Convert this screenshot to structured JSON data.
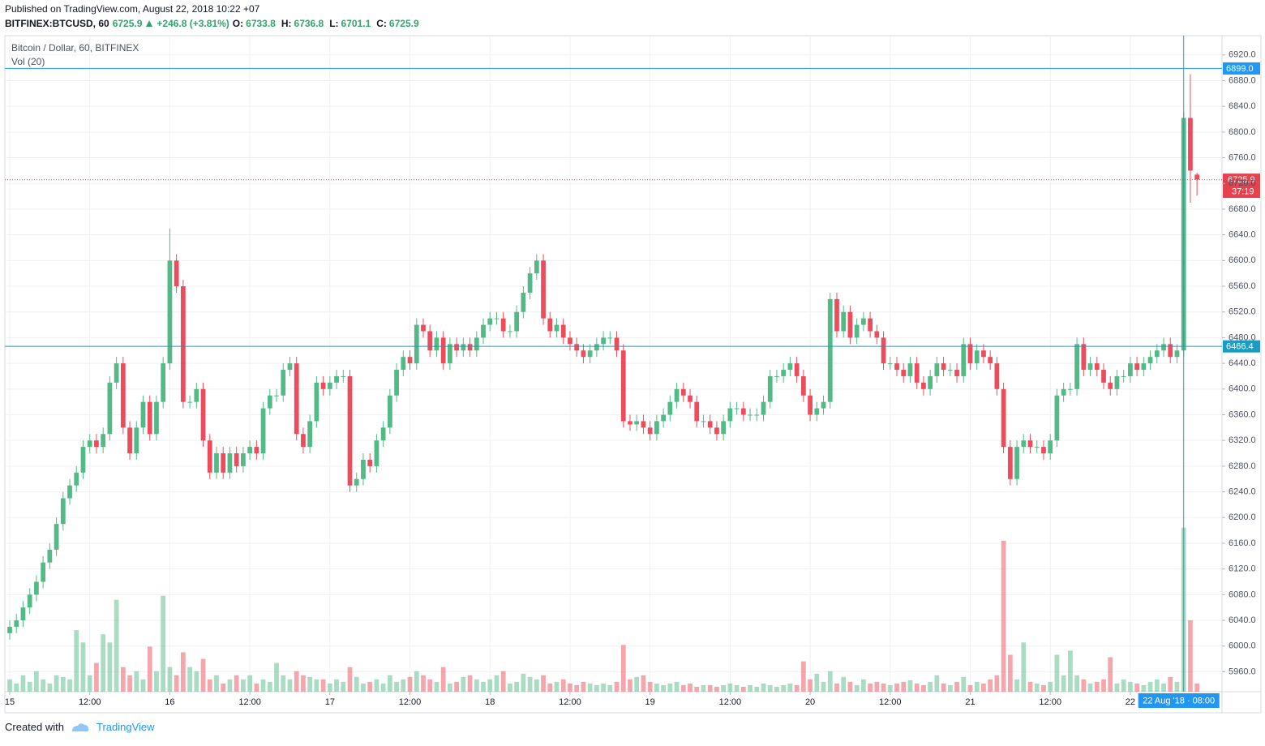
{
  "header": {
    "published": "Published on TradingView.com, August 22, 2018 10:22 +07",
    "symbol": "BITFINEX:BTCUSD, 60",
    "last": "6725.9",
    "change": "+246.8 (+3.81%)",
    "ohlc": [
      {
        "key": "O:",
        "value": "6733.8"
      },
      {
        "key": "H:",
        "value": "6736.8"
      },
      {
        "key": "L:",
        "value": "6701.1"
      },
      {
        "key": "C:",
        "value": "6725.9"
      }
    ]
  },
  "footer": {
    "created": "Created with",
    "brand": "TradingView"
  },
  "chart_data": {
    "type": "candlestick",
    "title": "Bitcoin / Dollar, 60, BITFINEX",
    "volume_title": "Vol (20)",
    "up_color": "#53b987",
    "down_color": "#eb4d5c",
    "grid": true,
    "xlim": [
      -0.73,
      181.75
    ],
    "xticks": [
      {
        "value": 0,
        "label": "15"
      },
      {
        "value": 12,
        "label": "12:00"
      },
      {
        "value": 24,
        "label": "16"
      },
      {
        "value": 36,
        "label": "12:00"
      },
      {
        "value": 48,
        "label": "17"
      },
      {
        "value": 60,
        "label": "12:00"
      },
      {
        "value": 72,
        "label": "18"
      },
      {
        "value": 84,
        "label": "12:00"
      },
      {
        "value": 96,
        "label": "19"
      },
      {
        "value": 108,
        "label": "12:00"
      },
      {
        "value": 120,
        "label": "20"
      },
      {
        "value": 132,
        "label": "12:00"
      },
      {
        "value": 144,
        "label": "21"
      },
      {
        "value": 156,
        "label": "12:00"
      },
      {
        "value": 168,
        "label": "22"
      }
    ],
    "ylim": [
      5929,
      6950
    ],
    "yticks": [
      {
        "value": 5960,
        "label": "5960.0"
      },
      {
        "value": 6000,
        "label": "6000.0"
      },
      {
        "value": 6040,
        "label": "6040.0"
      },
      {
        "value": 6080,
        "label": "6080.0"
      },
      {
        "value": 6120,
        "label": "6120.0"
      },
      {
        "value": 6160,
        "label": "6160.0"
      },
      {
        "value": 6200,
        "label": "6200.0"
      },
      {
        "value": 6240,
        "label": "6240.0"
      },
      {
        "value": 6280,
        "label": "6280.0"
      },
      {
        "value": 6320,
        "label": "6320.0"
      },
      {
        "value": 6360,
        "label": "6360.0"
      },
      {
        "value": 6400,
        "label": "6400.0"
      },
      {
        "value": 6440,
        "label": "6440.0"
      },
      {
        "value": 6480,
        "label": "6480.0"
      },
      {
        "value": 6520,
        "label": "6520.0"
      },
      {
        "value": 6560,
        "label": "6560.0"
      },
      {
        "value": 6600,
        "label": "6600.0"
      },
      {
        "value": 6640,
        "label": "6640.0"
      },
      {
        "value": 6680,
        "label": "6680.0"
      },
      {
        "value": 6720,
        "label": "6720.0"
      },
      {
        "value": 6760,
        "label": "6760.0"
      },
      {
        "value": 6800,
        "label": "6800.0"
      },
      {
        "value": 6840,
        "label": "6840.0"
      },
      {
        "value": 6880,
        "label": "6880.0"
      },
      {
        "value": 6920,
        "label": "6920.0"
      }
    ],
    "volume_ylim": [
      0,
      800
    ],
    "price_lines": [
      {
        "value": 6899,
        "label": "6899.0",
        "color": "#2196f3"
      },
      {
        "value": 6466.4,
        "color": "#1b9cc4"
      }
    ],
    "last_price": {
      "value": 6725.9,
      "timer": "37:19",
      "color": "#e5414e"
    },
    "crosshair": {
      "x": 176,
      "label": "22 Aug '18 · 08:00",
      "color": "#2196f3"
    },
    "open": [
      6020,
      6030,
      6040,
      6060,
      6080,
      6100,
      6130,
      6150,
      6190,
      6230,
      6250,
      6270,
      6310,
      6320,
      6310,
      6330,
      6410,
      6440,
      6340,
      6300,
      6340,
      6380,
      6330,
      6380,
      6440,
      6600,
      6560,
      6380,
      6380,
      6400,
      6320,
      6270,
      6300,
      6270,
      6300,
      6280,
      6300,
      6310,
      6300,
      6370,
      6390,
      6390,
      6430,
      6440,
      6330,
      6310,
      6350,
      6410,
      6400,
      6410,
      6420,
      6420,
      6250,
      6260,
      6290,
      6280,
      6320,
      6340,
      6390,
      6430,
      6450,
      6440,
      6500,
      6490,
      6460,
      6480,
      6440,
      6470,
      6460,
      6470,
      6460,
      6480,
      6500,
      6510,
      6510,
      6490,
      6490,
      6520,
      6550,
      6580,
      6600,
      6510,
      6490,
      6500,
      6480,
      6470,
      6460,
      6450,
      6460,
      6470,
      6480,
      6480,
      6460,
      6350,
      6345,
      6350,
      6340,
      6330,
      6350,
      6360,
      6380,
      6400,
      6390,
      6380,
      6350,
      6350,
      6340,
      6330,
      6350,
      6370,
      6370,
      6360,
      6360,
      6360,
      6380,
      6420,
      6420,
      6430,
      6440,
      6420,
      6390,
      6360,
      6370,
      6380,
      6540,
      6490,
      6520,
      6480,
      6500,
      6510,
      6490,
      6480,
      6440,
      6440,
      6430,
      6420,
      6440,
      6410,
      6400,
      6420,
      6440,
      6430,
      6430,
      6420,
      6470,
      6440,
      6460,
      6450,
      6440,
      6400,
      6310,
      6260,
      6310,
      6320,
      6310,
      6310,
      6300,
      6320,
      6390,
      6400,
      6400,
      6470,
      6430,
      6440,
      6430,
      6410,
      6400,
      6420,
      6420,
      6440,
      6430,
      6440,
      6450,
      6460,
      6470,
      6450,
      6460,
      6822,
      6733.8
    ],
    "high": [
      6040,
      6050,
      6070,
      6090,
      6110,
      6140,
      6160,
      6200,
      6240,
      6260,
      6280,
      6320,
      6330,
      6330,
      6340,
      6420,
      6450,
      6450,
      6350,
      6350,
      6390,
      6390,
      6390,
      6450,
      6650,
      6610,
      6570,
      6390,
      6410,
      6410,
      6330,
      6310,
      6310,
      6310,
      6310,
      6310,
      6320,
      6320,
      6380,
      6400,
      6400,
      6440,
      6450,
      6450,
      6340,
      6360,
      6420,
      6420,
      6420,
      6430,
      6430,
      6430,
      6270,
      6300,
      6300,
      6330,
      6350,
      6400,
      6440,
      6460,
      6460,
      6510,
      6510,
      6500,
      6490,
      6490,
      6480,
      6480,
      6480,
      6480,
      6490,
      6510,
      6520,
      6520,
      6520,
      6500,
      6530,
      6560,
      6590,
      6610,
      6610,
      6520,
      6510,
      6510,
      6490,
      6480,
      6470,
      6470,
      6480,
      6490,
      6490,
      6490,
      6470,
      6360,
      6360,
      6360,
      6350,
      6360,
      6370,
      6390,
      6410,
      6410,
      6400,
      6390,
      6360,
      6360,
      6350,
      6360,
      6380,
      6380,
      6380,
      6370,
      6370,
      6390,
      6430,
      6430,
      6440,
      6450,
      6450,
      6430,
      6400,
      6380,
      6390,
      6550,
      6550,
      6530,
      6530,
      6510,
      6520,
      6520,
      6500,
      6490,
      6450,
      6450,
      6440,
      6450,
      6450,
      6420,
      6430,
      6450,
      6450,
      6440,
      6440,
      6480,
      6480,
      6470,
      6470,
      6460,
      6450,
      6410,
      6320,
      6320,
      6330,
      6330,
      6320,
      6320,
      6330,
      6400,
      6410,
      6410,
      6480,
      6480,
      6450,
      6450,
      6440,
      6420,
      6430,
      6430,
      6450,
      6450,
      6450,
      6460,
      6470,
      6480,
      6480,
      6470,
      6830,
      6890,
      6736.8
    ],
    "low": [
      6010,
      6020,
      6030,
      6050,
      6070,
      6090,
      6120,
      6140,
      6180,
      6220,
      6240,
      6260,
      6300,
      6300,
      6300,
      6320,
      6400,
      6330,
      6290,
      6290,
      6330,
      6320,
      6320,
      6370,
      6430,
      6550,
      6370,
      6370,
      6370,
      6310,
      6260,
      6260,
      6260,
      6260,
      6270,
      6270,
      6290,
      6290,
      6290,
      6360,
      6380,
      6380,
      6420,
      6320,
      6300,
      6300,
      6340,
      6390,
      6390,
      6400,
      6410,
      6240,
      6240,
      6250,
      6270,
      6270,
      6310,
      6330,
      6380,
      6420,
      6430,
      6430,
      6480,
      6450,
      6450,
      6430,
      6430,
      6450,
      6450,
      6450,
      6450,
      6470,
      6490,
      6500,
      6480,
      6480,
      6480,
      6510,
      6540,
      6570,
      6500,
      6480,
      6480,
      6470,
      6460,
      6450,
      6440,
      6440,
      6450,
      6460,
      6470,
      6450,
      6340,
      6335,
      6335,
      6330,
      6320,
      6320,
      6340,
      6350,
      6370,
      6380,
      6370,
      6340,
      6340,
      6330,
      6320,
      6320,
      6340,
      6360,
      6350,
      6350,
      6350,
      6350,
      6370,
      6410,
      6410,
      6420,
      6410,
      6380,
      6350,
      6350,
      6360,
      6370,
      6480,
      6480,
      6470,
      6470,
      6490,
      6480,
      6470,
      6430,
      6430,
      6420,
      6410,
      6410,
      6400,
      6390,
      6390,
      6410,
      6420,
      6420,
      6410,
      6410,
      6430,
      6430,
      6440,
      6430,
      6390,
      6300,
      6250,
      6250,
      6300,
      6300,
      6300,
      6290,
      6290,
      6310,
      6380,
      6390,
      6390,
      6420,
      6420,
      6420,
      6400,
      6390,
      6390,
      6410,
      6410,
      6420,
      6420,
      6430,
      6440,
      6450,
      6440,
      6440,
      6450,
      6690,
      6701.1
    ],
    "close": [
      6030,
      6040,
      6060,
      6080,
      6100,
      6130,
      6150,
      6190,
      6230,
      6250,
      6270,
      6310,
      6320,
      6310,
      6330,
      6410,
      6440,
      6340,
      6300,
      6340,
      6380,
      6330,
      6380,
      6440,
      6600,
      6560,
      6380,
      6380,
      6400,
      6320,
      6270,
      6300,
      6270,
      6300,
      6280,
      6300,
      6310,
      6300,
      6370,
      6390,
      6390,
      6430,
      6440,
      6330,
      6310,
      6350,
      6410,
      6400,
      6410,
      6420,
      6420,
      6250,
      6260,
      6290,
      6280,
      6320,
      6340,
      6390,
      6430,
      6450,
      6440,
      6500,
      6490,
      6460,
      6480,
      6440,
      6470,
      6460,
      6470,
      6460,
      6480,
      6500,
      6510,
      6510,
      6490,
      6490,
      6520,
      6550,
      6580,
      6600,
      6510,
      6490,
      6500,
      6480,
      6470,
      6460,
      6450,
      6460,
      6470,
      6480,
      6480,
      6460,
      6350,
      6345,
      6350,
      6340,
      6330,
      6350,
      6360,
      6380,
      6400,
      6390,
      6380,
      6350,
      6350,
      6340,
      6330,
      6350,
      6370,
      6370,
      6360,
      6360,
      6360,
      6380,
      6420,
      6420,
      6430,
      6440,
      6420,
      6390,
      6360,
      6370,
      6380,
      6540,
      6490,
      6520,
      6480,
      6500,
      6510,
      6490,
      6480,
      6440,
      6440,
      6430,
      6420,
      6440,
      6410,
      6400,
      6420,
      6440,
      6430,
      6430,
      6420,
      6470,
      6440,
      6460,
      6450,
      6440,
      6400,
      6310,
      6260,
      6310,
      6320,
      6310,
      6310,
      6300,
      6320,
      6390,
      6400,
      6400,
      6470,
      6430,
      6440,
      6430,
      6410,
      6400,
      6420,
      6420,
      6440,
      6430,
      6440,
      6450,
      6460,
      6470,
      6450,
      6460,
      6822,
      6740,
      6725.9
    ],
    "volume": [
      15,
      10,
      20,
      12,
      25,
      15,
      10,
      20,
      18,
      15,
      75,
      60,
      20,
      35,
      70,
      60,
      112,
      30,
      20,
      25,
      15,
      55,
      25,
      117,
      30,
      20,
      48,
      30,
      25,
      40,
      15,
      20,
      10,
      15,
      20,
      15,
      20,
      10,
      15,
      12,
      35,
      20,
      15,
      25,
      20,
      18,
      15,
      15,
      10,
      15,
      12,
      30,
      18,
      10,
      12,
      15,
      10,
      20,
      12,
      15,
      18,
      25,
      20,
      15,
      12,
      30,
      10,
      12,
      18,
      20,
      15,
      12,
      15,
      20,
      25,
      10,
      12,
      22,
      18,
      15,
      20,
      10,
      12,
      15,
      10,
      8,
      12,
      10,
      8,
      10,
      8,
      12,
      57,
      15,
      18,
      20,
      12,
      10,
      8,
      10,
      12,
      8,
      10,
      6,
      8,
      8,
      6,
      8,
      10,
      8,
      6,
      8,
      6,
      10,
      8,
      6,
      8,
      10,
      8,
      37,
      15,
      22,
      12,
      25,
      10,
      18,
      12,
      8,
      15,
      10,
      12,
      10,
      8,
      10,
      12,
      14,
      10,
      8,
      12,
      20,
      10,
      8,
      12,
      18,
      8,
      12,
      10,
      15,
      20,
      184,
      45,
      15,
      60,
      12,
      10,
      8,
      12,
      45,
      20,
      50,
      20,
      15,
      10,
      12,
      15,
      42,
      10,
      15,
      12,
      10,
      8,
      12,
      15,
      10,
      18,
      12,
      200,
      87,
      10
    ]
  }
}
